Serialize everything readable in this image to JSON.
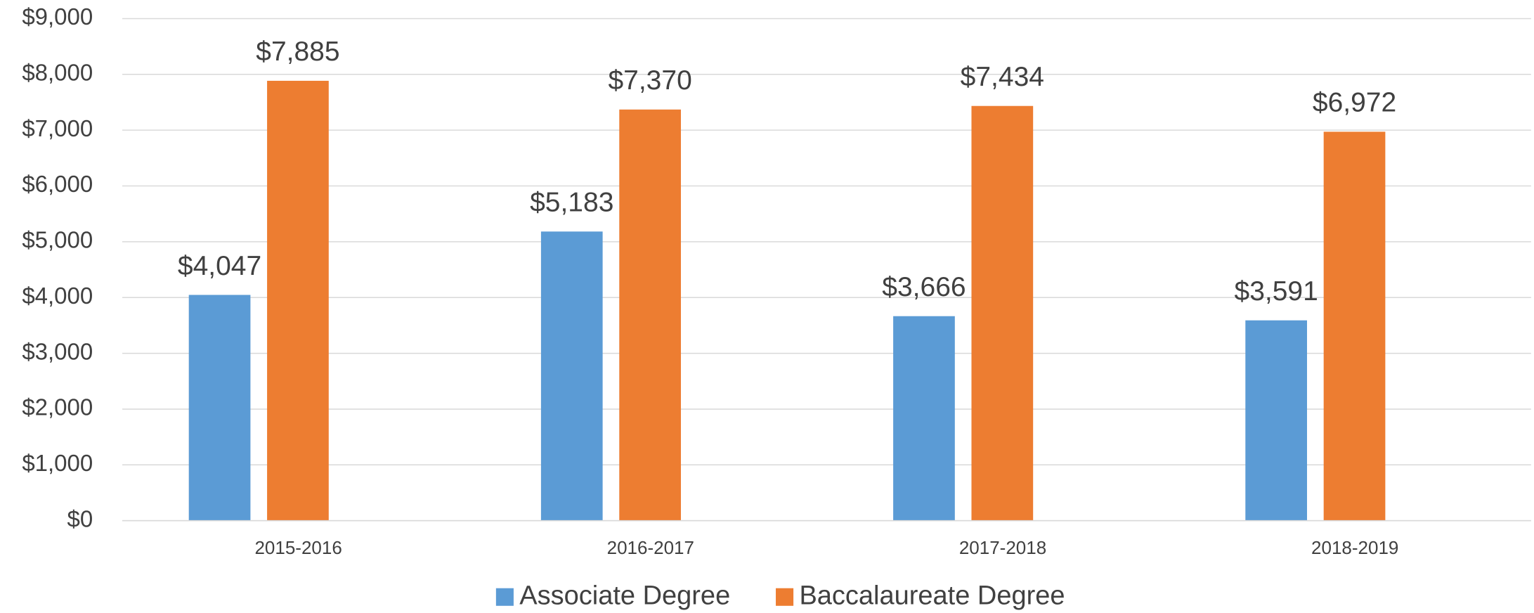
{
  "chart_data": {
    "type": "bar",
    "categories": [
      "2015-2016",
      "2016-2017",
      "2017-2018",
      "2018-2019"
    ],
    "series": [
      {
        "name": "Associate Degree",
        "color": "#5b9bd5",
        "values": [
          4047,
          5183,
          3666,
          3591
        ],
        "value_labels": [
          "$4,047",
          "$5,183",
          "$3,666",
          "$3,591"
        ]
      },
      {
        "name": "Baccalaureate Degree",
        "color": "#ed7d31",
        "values": [
          7885,
          7370,
          7434,
          6972
        ],
        "value_labels": [
          "$7,885",
          "$7,370",
          "$7,434",
          "$6,972"
        ]
      }
    ],
    "ylim": [
      0,
      9000
    ],
    "yticks": [
      {
        "value": 0,
        "label": "$0"
      },
      {
        "value": 1000,
        "label": "$1,000"
      },
      {
        "value": 2000,
        "label": "$2,000"
      },
      {
        "value": 3000,
        "label": "$3,000"
      },
      {
        "value": 4000,
        "label": "$4,000"
      },
      {
        "value": 5000,
        "label": "$5,000"
      },
      {
        "value": 6000,
        "label": "$6,000"
      },
      {
        "value": 7000,
        "label": "$7,000"
      },
      {
        "value": 8000,
        "label": "$8,000"
      },
      {
        "value": 9000,
        "label": "$9,000"
      }
    ],
    "grid": true,
    "legend": "bottom"
  }
}
